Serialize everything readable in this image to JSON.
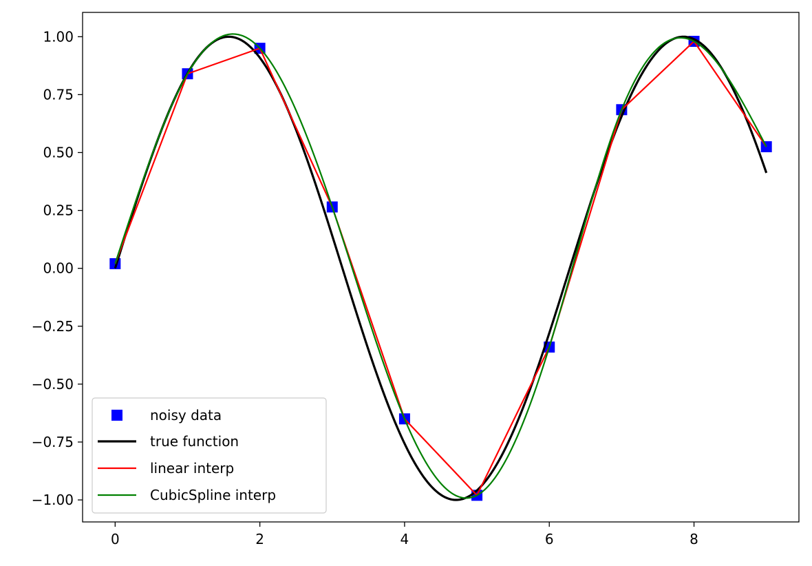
{
  "chart_data": {
    "type": "line",
    "title": "",
    "xlabel": "",
    "ylabel": "",
    "xlim": [
      -0.45,
      9.45
    ],
    "ylim": [
      -1.095,
      1.105
    ],
    "grid": false,
    "x_ticks": [
      {
        "value": 0,
        "label": "0"
      },
      {
        "value": 2,
        "label": "2"
      },
      {
        "value": 4,
        "label": "4"
      },
      {
        "value": 6,
        "label": "6"
      },
      {
        "value": 8,
        "label": "8"
      }
    ],
    "y_ticks": [
      {
        "value": 1.0,
        "label": "1.00"
      },
      {
        "value": 0.75,
        "label": "0.75"
      },
      {
        "value": 0.5,
        "label": "0.50"
      },
      {
        "value": 0.25,
        "label": "0.25"
      },
      {
        "value": 0.0,
        "label": "0.00"
      },
      {
        "value": -0.25,
        "label": "−0.25"
      },
      {
        "value": -0.5,
        "label": "−0.50"
      },
      {
        "value": -0.75,
        "label": "−0.75"
      },
      {
        "value": -1.0,
        "label": "−1.00"
      }
    ],
    "legend_position": "lower-left",
    "series": [
      {
        "name": "noisy data",
        "style": "markers",
        "marker": "square",
        "color": "#0000ff",
        "x": [
          0,
          1,
          2,
          3,
          4,
          5,
          6,
          7,
          8,
          9
        ],
        "y": [
          0.02,
          0.84,
          0.95,
          0.265,
          -0.65,
          -0.98,
          -0.34,
          0.685,
          0.98,
          0.525
        ]
      },
      {
        "name": "true function",
        "style": "line",
        "color": "#000000",
        "x_range": [
          0,
          9
        ],
        "function": "sin"
      },
      {
        "name": "linear interp",
        "style": "line",
        "color": "#ff0000",
        "x": [
          0,
          1,
          2,
          3,
          4,
          5,
          6,
          7,
          8,
          9
        ],
        "y": [
          0.02,
          0.84,
          0.95,
          0.265,
          -0.65,
          -0.98,
          -0.34,
          0.685,
          0.98,
          0.525
        ]
      },
      {
        "name": "CubicSpline interp",
        "style": "line",
        "color": "#008000",
        "x": [
          0,
          1,
          2,
          3,
          4,
          5,
          6,
          7,
          8,
          9
        ],
        "y": [
          0.02,
          0.84,
          0.95,
          0.265,
          -0.65,
          -0.98,
          -0.34,
          0.685,
          0.98,
          0.525
        ],
        "interpolation": "natural-cubic-spline"
      }
    ]
  }
}
